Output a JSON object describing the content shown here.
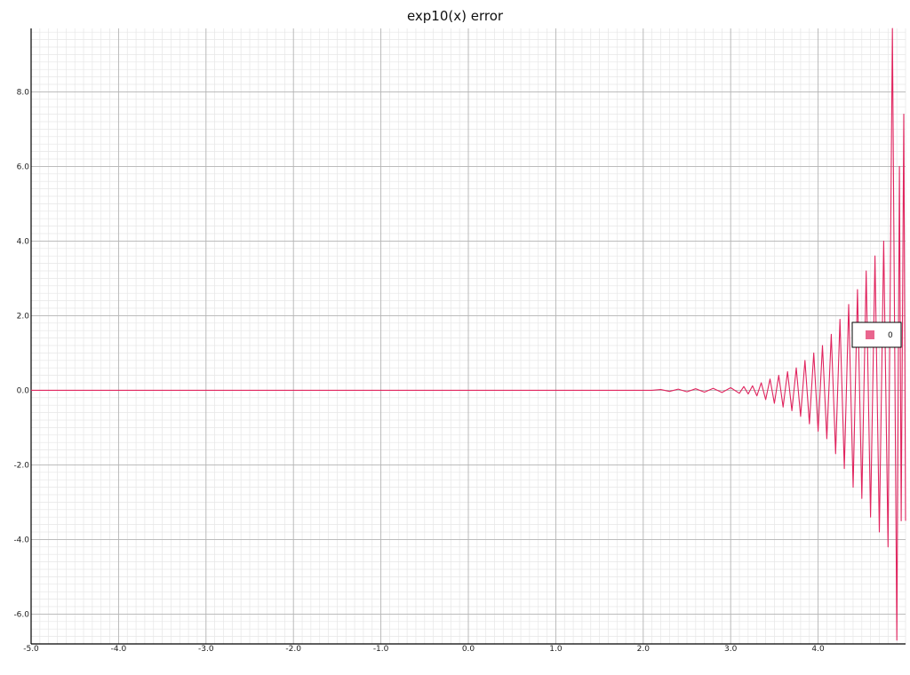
{
  "chart_data": {
    "type": "line",
    "title": "exp10(x) error",
    "xlabel": "",
    "ylabel": "",
    "xlim": [
      -5.0,
      5.0
    ],
    "ylim": [
      -6.8,
      9.7
    ],
    "xticks": [
      -5.0,
      -4.0,
      -3.0,
      -2.0,
      -1.0,
      0.0,
      1.0,
      2.0,
      3.0,
      4.0
    ],
    "xtick_labels": [
      "-5.0",
      "-4.0",
      "-3.0",
      "-2.0",
      "-1.0",
      "0.0",
      "1.0",
      "2.0",
      "3.0",
      "4.0"
    ],
    "yticks": [
      -6.0,
      -4.0,
      -2.0,
      0.0,
      2.0,
      4.0,
      6.0,
      8.0
    ],
    "ytick_labels": [
      "-6.0",
      "-4.0",
      "-2.0",
      "0.0",
      "2.0",
      "4.0",
      "6.0",
      "8.0"
    ],
    "grid": true,
    "minor_grid": true,
    "legend": {
      "placement": "right",
      "entries": [
        "0"
      ]
    },
    "series": [
      {
        "name": "0",
        "color": "#e0245e",
        "x": [
          -5.0,
          2.1,
          2.2,
          2.3,
          2.4,
          2.5,
          2.6,
          2.7,
          2.8,
          2.9,
          3.0,
          3.1,
          3.15,
          3.2,
          3.25,
          3.3,
          3.35,
          3.4,
          3.45,
          3.5,
          3.55,
          3.6,
          3.65,
          3.7,
          3.75,
          3.8,
          3.85,
          3.9,
          3.95,
          4.0,
          4.05,
          4.1,
          4.15,
          4.2,
          4.25,
          4.3,
          4.35,
          4.4,
          4.45,
          4.5,
          4.55,
          4.6,
          4.65,
          4.7,
          4.75,
          4.8,
          4.85,
          4.9,
          4.93,
          4.95,
          4.98,
          5.0
        ],
        "y": [
          0.0,
          0.0,
          0.02,
          -0.03,
          0.03,
          -0.04,
          0.04,
          -0.05,
          0.05,
          -0.06,
          0.07,
          -0.08,
          0.1,
          -0.1,
          0.12,
          -0.15,
          0.2,
          -0.25,
          0.3,
          -0.35,
          0.4,
          -0.45,
          0.5,
          -0.55,
          0.6,
          -0.7,
          0.8,
          -0.9,
          1.0,
          -1.1,
          1.2,
          -1.3,
          1.5,
          -1.7,
          1.9,
          -2.1,
          2.3,
          -2.6,
          2.7,
          -2.9,
          3.2,
          -3.4,
          3.6,
          -3.8,
          4.0,
          -4.2,
          9.7,
          -6.7,
          6.0,
          -3.5,
          7.4,
          -3.5
        ]
      }
    ]
  }
}
